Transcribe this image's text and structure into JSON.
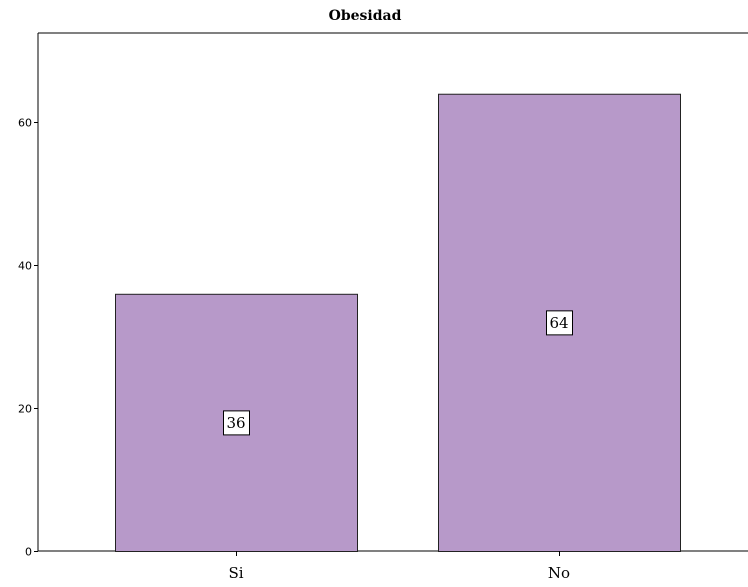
{
  "chart_data": {
    "type": "bar",
    "title": "Obesidad",
    "xlabel": "",
    "ylabel": "",
    "categories": [
      "Si",
      "No"
    ],
    "values": [
      36,
      64
    ],
    "ylim": [
      0,
      72.5
    ],
    "yticks": [
      0,
      20,
      40,
      60
    ],
    "data_labels": [
      "36",
      "64"
    ],
    "grid": false,
    "legend": "none",
    "colors": {
      "bar_fill": "#b799c9",
      "bar_stroke": "#222222",
      "axis": "#000000",
      "label_box_fill": "#ffffff",
      "label_box_stroke": "#000000"
    }
  }
}
